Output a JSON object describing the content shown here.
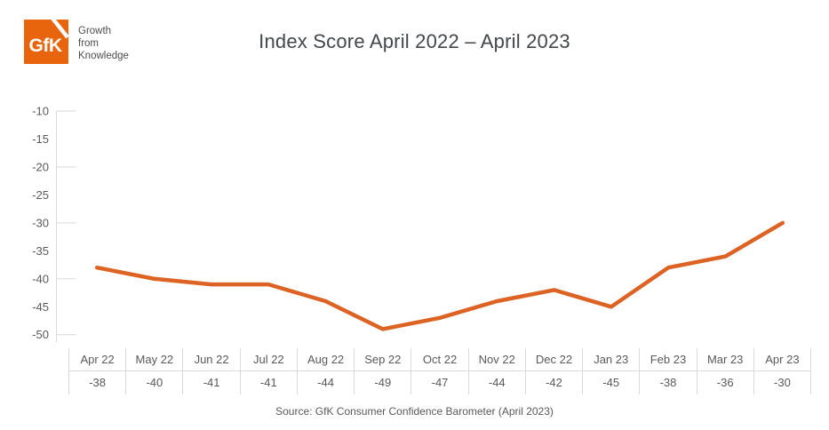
{
  "header": {
    "logo": {
      "text": "GfK",
      "tagline": [
        "Growth",
        "from",
        "Knowledge"
      ]
    },
    "title": "Index Score April 2022 – April 2023"
  },
  "chart_data": {
    "type": "line",
    "title": "Index Score April 2022 – April 2023",
    "categories": [
      "Apr 22",
      "May 22",
      "Jun 22",
      "Jul 22",
      "Aug 22",
      "Sep 22",
      "Oct 22",
      "Nov 22",
      "Dec 22",
      "Jan 23",
      "Feb 23",
      "Mar 23",
      "Apr 23"
    ],
    "values": [
      -38,
      -40,
      -41,
      -41,
      -44,
      -49,
      -47,
      -44,
      -42,
      -45,
      -38,
      -36,
      -30
    ],
    "ylim": [
      -50,
      -10
    ],
    "yticks": [
      -10,
      -15,
      -20,
      -25,
      -30,
      -35,
      -40,
      -45,
      -50
    ],
    "ytick_major": [
      -10,
      -20,
      -30,
      -40,
      -50
    ],
    "grid": "off",
    "legend": "none",
    "line_color": "#dc6323",
    "data_table_shown": true
  },
  "colors": {
    "accent_orange": "#dc6323",
    "logo_orange": "#e8650e",
    "title_text": "#43474b",
    "muted_text": "#595959",
    "axis_line": "#d9d9d9"
  },
  "footer": {
    "source": "Source: GfK Consumer Confidence Barometer (April 2023)"
  }
}
